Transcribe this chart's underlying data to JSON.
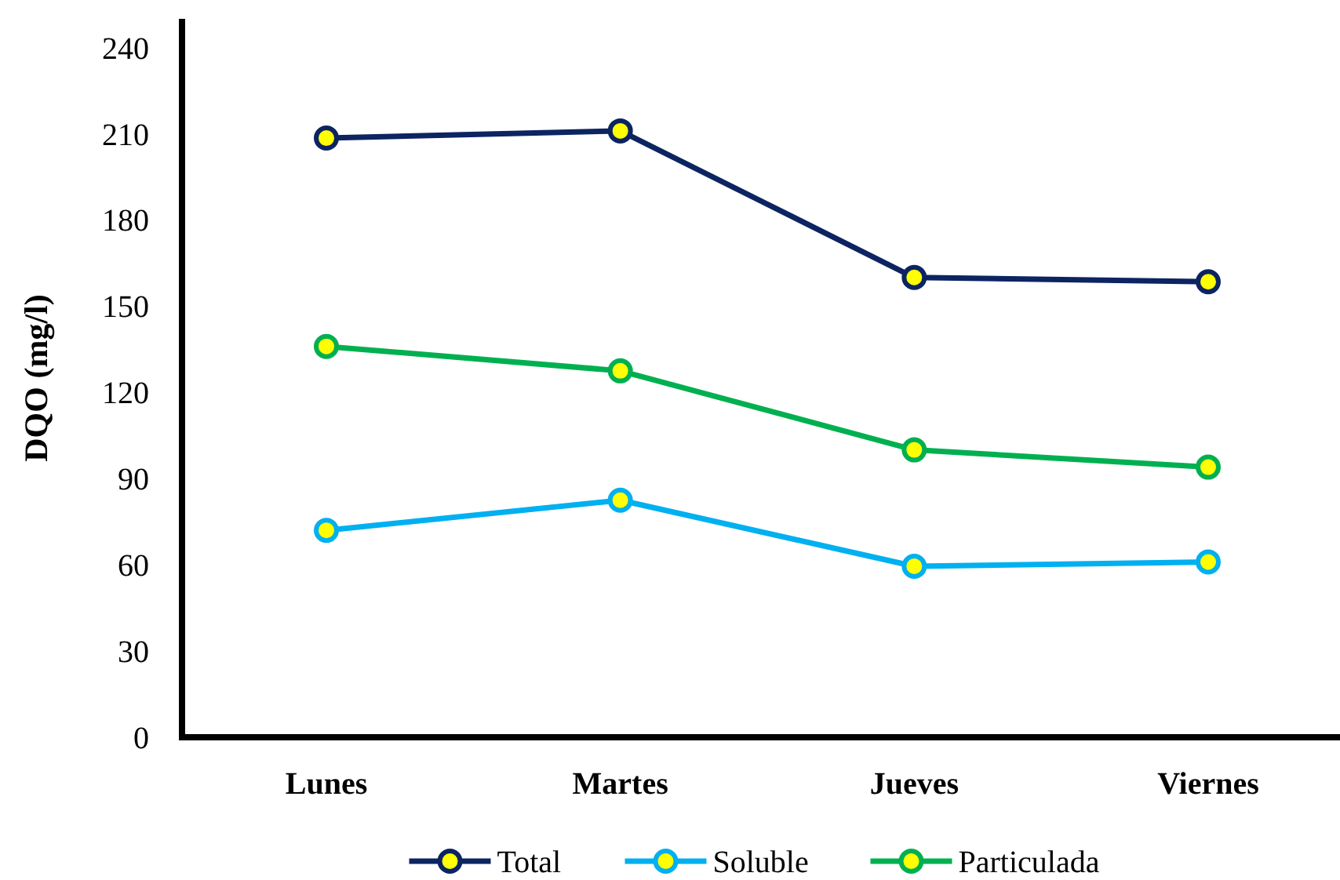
{
  "chart_data": {
    "type": "line",
    "ylabel": "DQO (mg/l)",
    "categories": [
      "Lunes",
      "Martes",
      "Jueves",
      "Viernes"
    ],
    "series": [
      {
        "name": "Total",
        "color": "#0c2461",
        "values": [
          208.5,
          211,
          160,
          158.5
        ]
      },
      {
        "name": "Soluble",
        "color": "#00b0f0",
        "values": [
          72,
          82.5,
          59.5,
          61
        ]
      },
      {
        "name": "Particulada",
        "color": "#00b050",
        "values": [
          136,
          127.5,
          100,
          94
        ]
      }
    ],
    "ylim": [
      0,
      250
    ],
    "yticks": [
      0,
      30,
      60,
      90,
      120,
      150,
      180,
      210,
      240
    ],
    "grid": false,
    "legend": "bottom",
    "marker": "circle",
    "line_style": "solid"
  }
}
